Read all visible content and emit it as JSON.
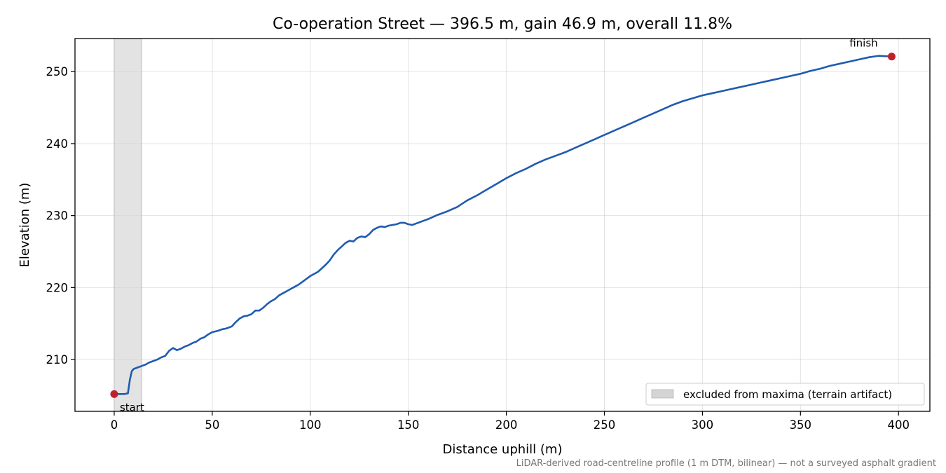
{
  "chart_data": {
    "type": "line",
    "title": "Co-operation Street — 396.5 m, gain 46.9 m, overall 11.8%",
    "xlabel": "Distance uphill (m)",
    "ylabel": "Elevation (m)",
    "xlim": [
      -20,
      416
    ],
    "ylim": [
      202.8,
      254.6
    ],
    "xticks": [
      0,
      50,
      100,
      150,
      200,
      250,
      300,
      350,
      400
    ],
    "yticks": [
      210,
      220,
      230,
      240,
      250
    ],
    "grid": true,
    "line_color": "#1f5bb0",
    "marker_color": "#c0202a",
    "shade_color": "#d4d4d4",
    "series": [
      {
        "x": [
          0,
          2,
          5,
          7,
          8,
          9,
          10,
          12,
          14,
          16,
          18,
          20,
          22,
          24,
          26,
          28,
          30,
          32,
          34,
          36,
          38,
          40,
          42,
          44,
          46,
          48,
          50,
          53,
          55,
          57,
          60,
          62,
          64,
          66,
          68,
          70,
          72,
          74,
          76,
          78,
          80,
          82,
          84,
          86,
          88,
          90,
          92,
          94,
          96,
          98,
          100,
          102,
          104,
          106,
          108,
          110,
          112,
          114,
          116,
          118,
          120,
          122,
          124,
          126,
          128,
          130,
          132,
          134,
          136,
          138,
          140,
          142,
          144,
          146,
          148,
          150,
          152,
          154,
          156,
          158,
          160,
          165,
          170,
          175,
          180,
          185,
          190,
          195,
          200,
          205,
          210,
          215,
          220,
          225,
          230,
          235,
          240,
          245,
          250,
          255,
          260,
          265,
          270,
          275,
          280,
          285,
          290,
          295,
          300,
          305,
          310,
          315,
          320,
          325,
          330,
          335,
          340,
          345,
          350,
          355,
          360,
          365,
          370,
          375,
          380,
          385,
          390,
          396.5
        ],
        "y": [
          205.2,
          205.2,
          205.2,
          205.3,
          207.2,
          208.4,
          208.7,
          208.9,
          209.1,
          209.3,
          209.6,
          209.8,
          210.0,
          210.3,
          210.5,
          211.2,
          211.6,
          211.3,
          211.5,
          211.8,
          212.0,
          212.3,
          212.5,
          212.9,
          213.1,
          213.5,
          213.8,
          214.0,
          214.2,
          214.3,
          214.6,
          215.2,
          215.7,
          216.0,
          216.1,
          216.3,
          216.8,
          216.8,
          217.2,
          217.7,
          218.1,
          218.4,
          218.9,
          219.2,
          219.5,
          219.8,
          220.1,
          220.4,
          220.8,
          221.2,
          221.6,
          221.9,
          222.2,
          222.7,
          223.2,
          223.8,
          224.6,
          225.2,
          225.7,
          226.2,
          226.5,
          226.4,
          226.9,
          227.1,
          227.0,
          227.4,
          228.0,
          228.3,
          228.5,
          228.4,
          228.6,
          228.7,
          228.8,
          229.0,
          229.0,
          228.8,
          228.7,
          228.9,
          229.1,
          229.3,
          229.5,
          230.1,
          230.6,
          231.2,
          232.1,
          232.8,
          233.6,
          234.4,
          235.2,
          235.9,
          236.5,
          237.2,
          237.8,
          238.3,
          238.8,
          239.4,
          240.0,
          240.6,
          241.2,
          241.8,
          242.4,
          243.0,
          243.6,
          244.2,
          244.8,
          245.4,
          245.9,
          246.3,
          246.7,
          247.0,
          247.3,
          247.6,
          247.9,
          248.2,
          248.5,
          248.8,
          249.1,
          249.4,
          249.7,
          250.1,
          250.4,
          250.8,
          251.1,
          251.4,
          251.7,
          252.0,
          252.2,
          252.1
        ]
      }
    ],
    "annotations": {
      "start": {
        "label": "start",
        "x": 0,
        "y": 205.2
      },
      "finish": {
        "label": "finish",
        "x": 396.5,
        "y": 252.1
      }
    },
    "excluded_region": {
      "x_start": 0,
      "x_end": 14,
      "label": "excluded from maxima (terrain artifact)"
    },
    "legend_position": "lower-right",
    "footnote": "LiDAR-derived road-centreline profile (1 m DTM, bilinear) — not a surveyed asphalt gradient"
  }
}
